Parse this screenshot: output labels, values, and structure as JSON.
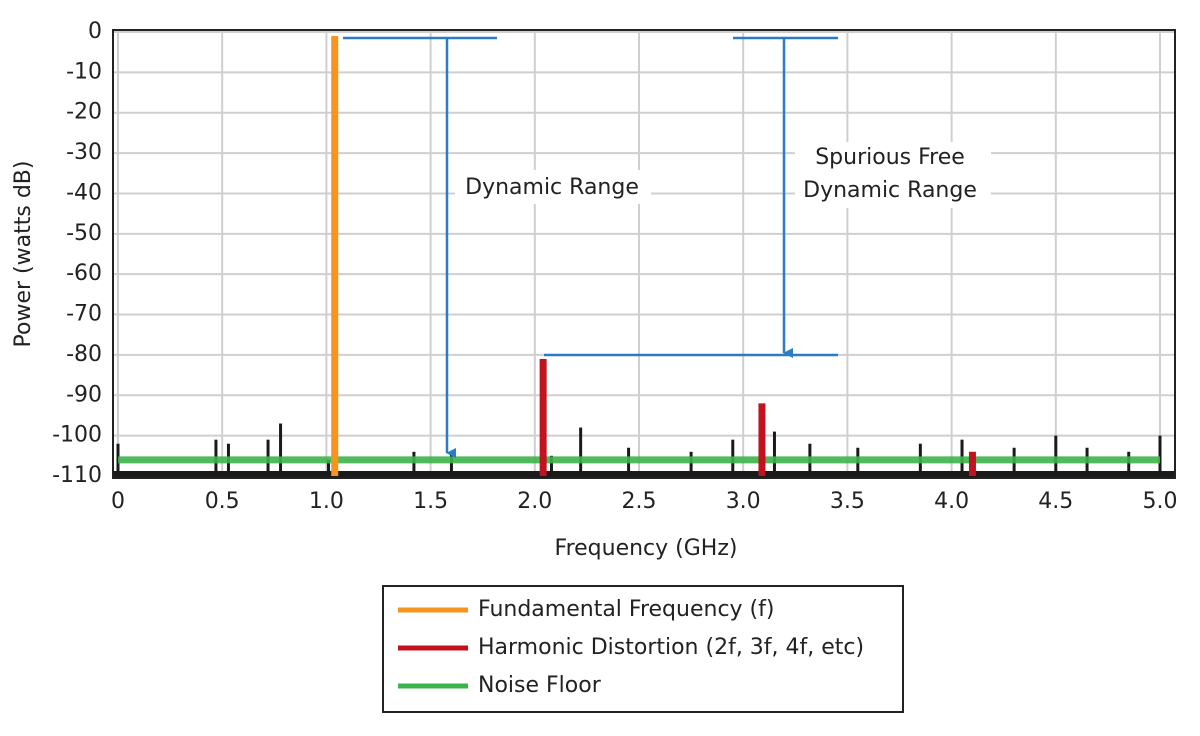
{
  "chart_data": {
    "type": "stem",
    "x_label": "Frequency (GHz)",
    "y_label": "Power (watts dB)",
    "xlim": [
      0,
      5
    ],
    "xticks": [
      0,
      0.5,
      {
        "value": 1,
        "label": "1.0"
      },
      1.5,
      {
        "value": 2,
        "label": "2.0"
      },
      2.5,
      {
        "value": 3,
        "label": "3.0"
      },
      3.5,
      {
        "value": 4,
        "label": "4.0"
      },
      4.5,
      {
        "value": 5,
        "label": "5.0"
      }
    ],
    "ylim": [
      -110,
      0
    ],
    "yticks": [
      0,
      -10,
      -20,
      -30,
      -40,
      -50,
      -60,
      -70,
      -80,
      -90,
      -100,
      -110
    ],
    "grid": true,
    "series": [
      {
        "name": "Fundamental Frequency (f)",
        "color": "#f7941d",
        "type": "stem",
        "x": [
          1.04
        ],
        "values": [
          -1
        ]
      },
      {
        "name": "Harmonic Distortion (2f, 3f, 4f, etc)",
        "color": "#c1121f",
        "type": "stem",
        "x": [
          2.04,
          3.09,
          4.1
        ],
        "values": [
          -81,
          -92,
          -104
        ]
      },
      {
        "name": "Noise Floor",
        "color": "#3cb44b",
        "type": "line",
        "x": [
          0,
          5
        ],
        "values": [
          -106,
          -106
        ]
      }
    ],
    "noise_spikes": {
      "color": "#1a1a1a",
      "x": [
        0,
        0.47,
        0.53,
        0.72,
        0.78,
        1.01,
        1.42,
        1.6,
        2.08,
        2.22,
        2.45,
        2.75,
        2.95,
        3.15,
        3.32,
        3.55,
        3.85,
        4.05,
        4.3,
        4.5,
        4.65,
        4.85,
        5.0
      ],
      "values": [
        -102,
        -101,
        -102,
        -101,
        -97,
        -106,
        -104,
        -104,
        -105,
        -98,
        -103,
        -104,
        -101,
        -99,
        -102,
        -103,
        -102,
        -101,
        -103,
        -100,
        -103,
        -104,
        -100
      ]
    },
    "annotations": [
      "Dynamic Range",
      "Spurious Free",
      "Dynamic Range"
    ]
  }
}
